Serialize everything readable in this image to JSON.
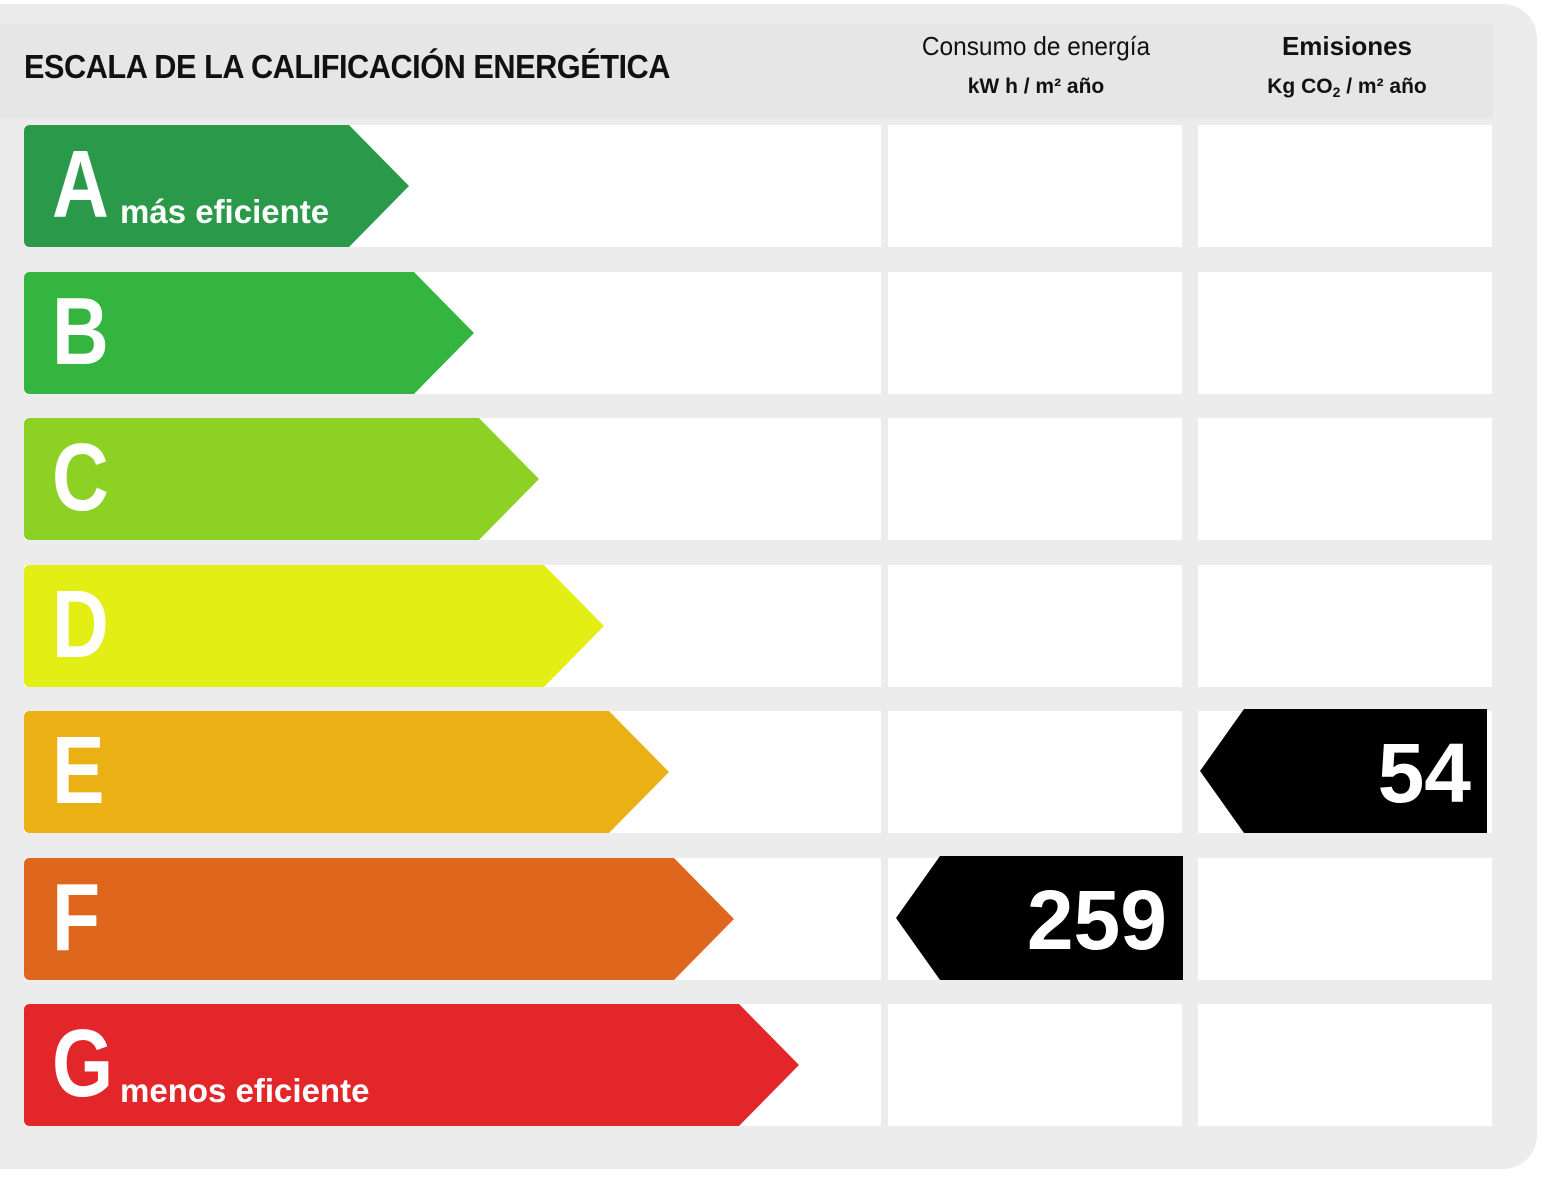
{
  "title": "ESCALA DE LA CALIFICACIÓN ENERGÉTICA",
  "columns": {
    "energy": {
      "label": "Consumo de energía",
      "unit": "kW h / m² año"
    },
    "emissions": {
      "label": "Emisiones",
      "unit_prefix": "Kg CO",
      "unit_sub": "2",
      "unit_suffix": " / m² año"
    }
  },
  "ratings": [
    {
      "letter": "A",
      "label": "más eficiente",
      "color": "#2a9a4a"
    },
    {
      "letter": "B",
      "label": "",
      "color": "#34b540"
    },
    {
      "letter": "C",
      "label": "",
      "color": "#8dd125"
    },
    {
      "letter": "D",
      "label": "",
      "color": "#e2ee14"
    },
    {
      "letter": "E",
      "label": "",
      "color": "#ebb114"
    },
    {
      "letter": "F",
      "label": "",
      "color": "#df661d"
    },
    {
      "letter": "G",
      "label": "menos eficiente",
      "color": "#e2262a"
    }
  ],
  "results": {
    "energy": {
      "value": "259",
      "rating": "F"
    },
    "emissions": {
      "value": "54",
      "rating": "E"
    }
  },
  "indicator_color": "#000000"
}
